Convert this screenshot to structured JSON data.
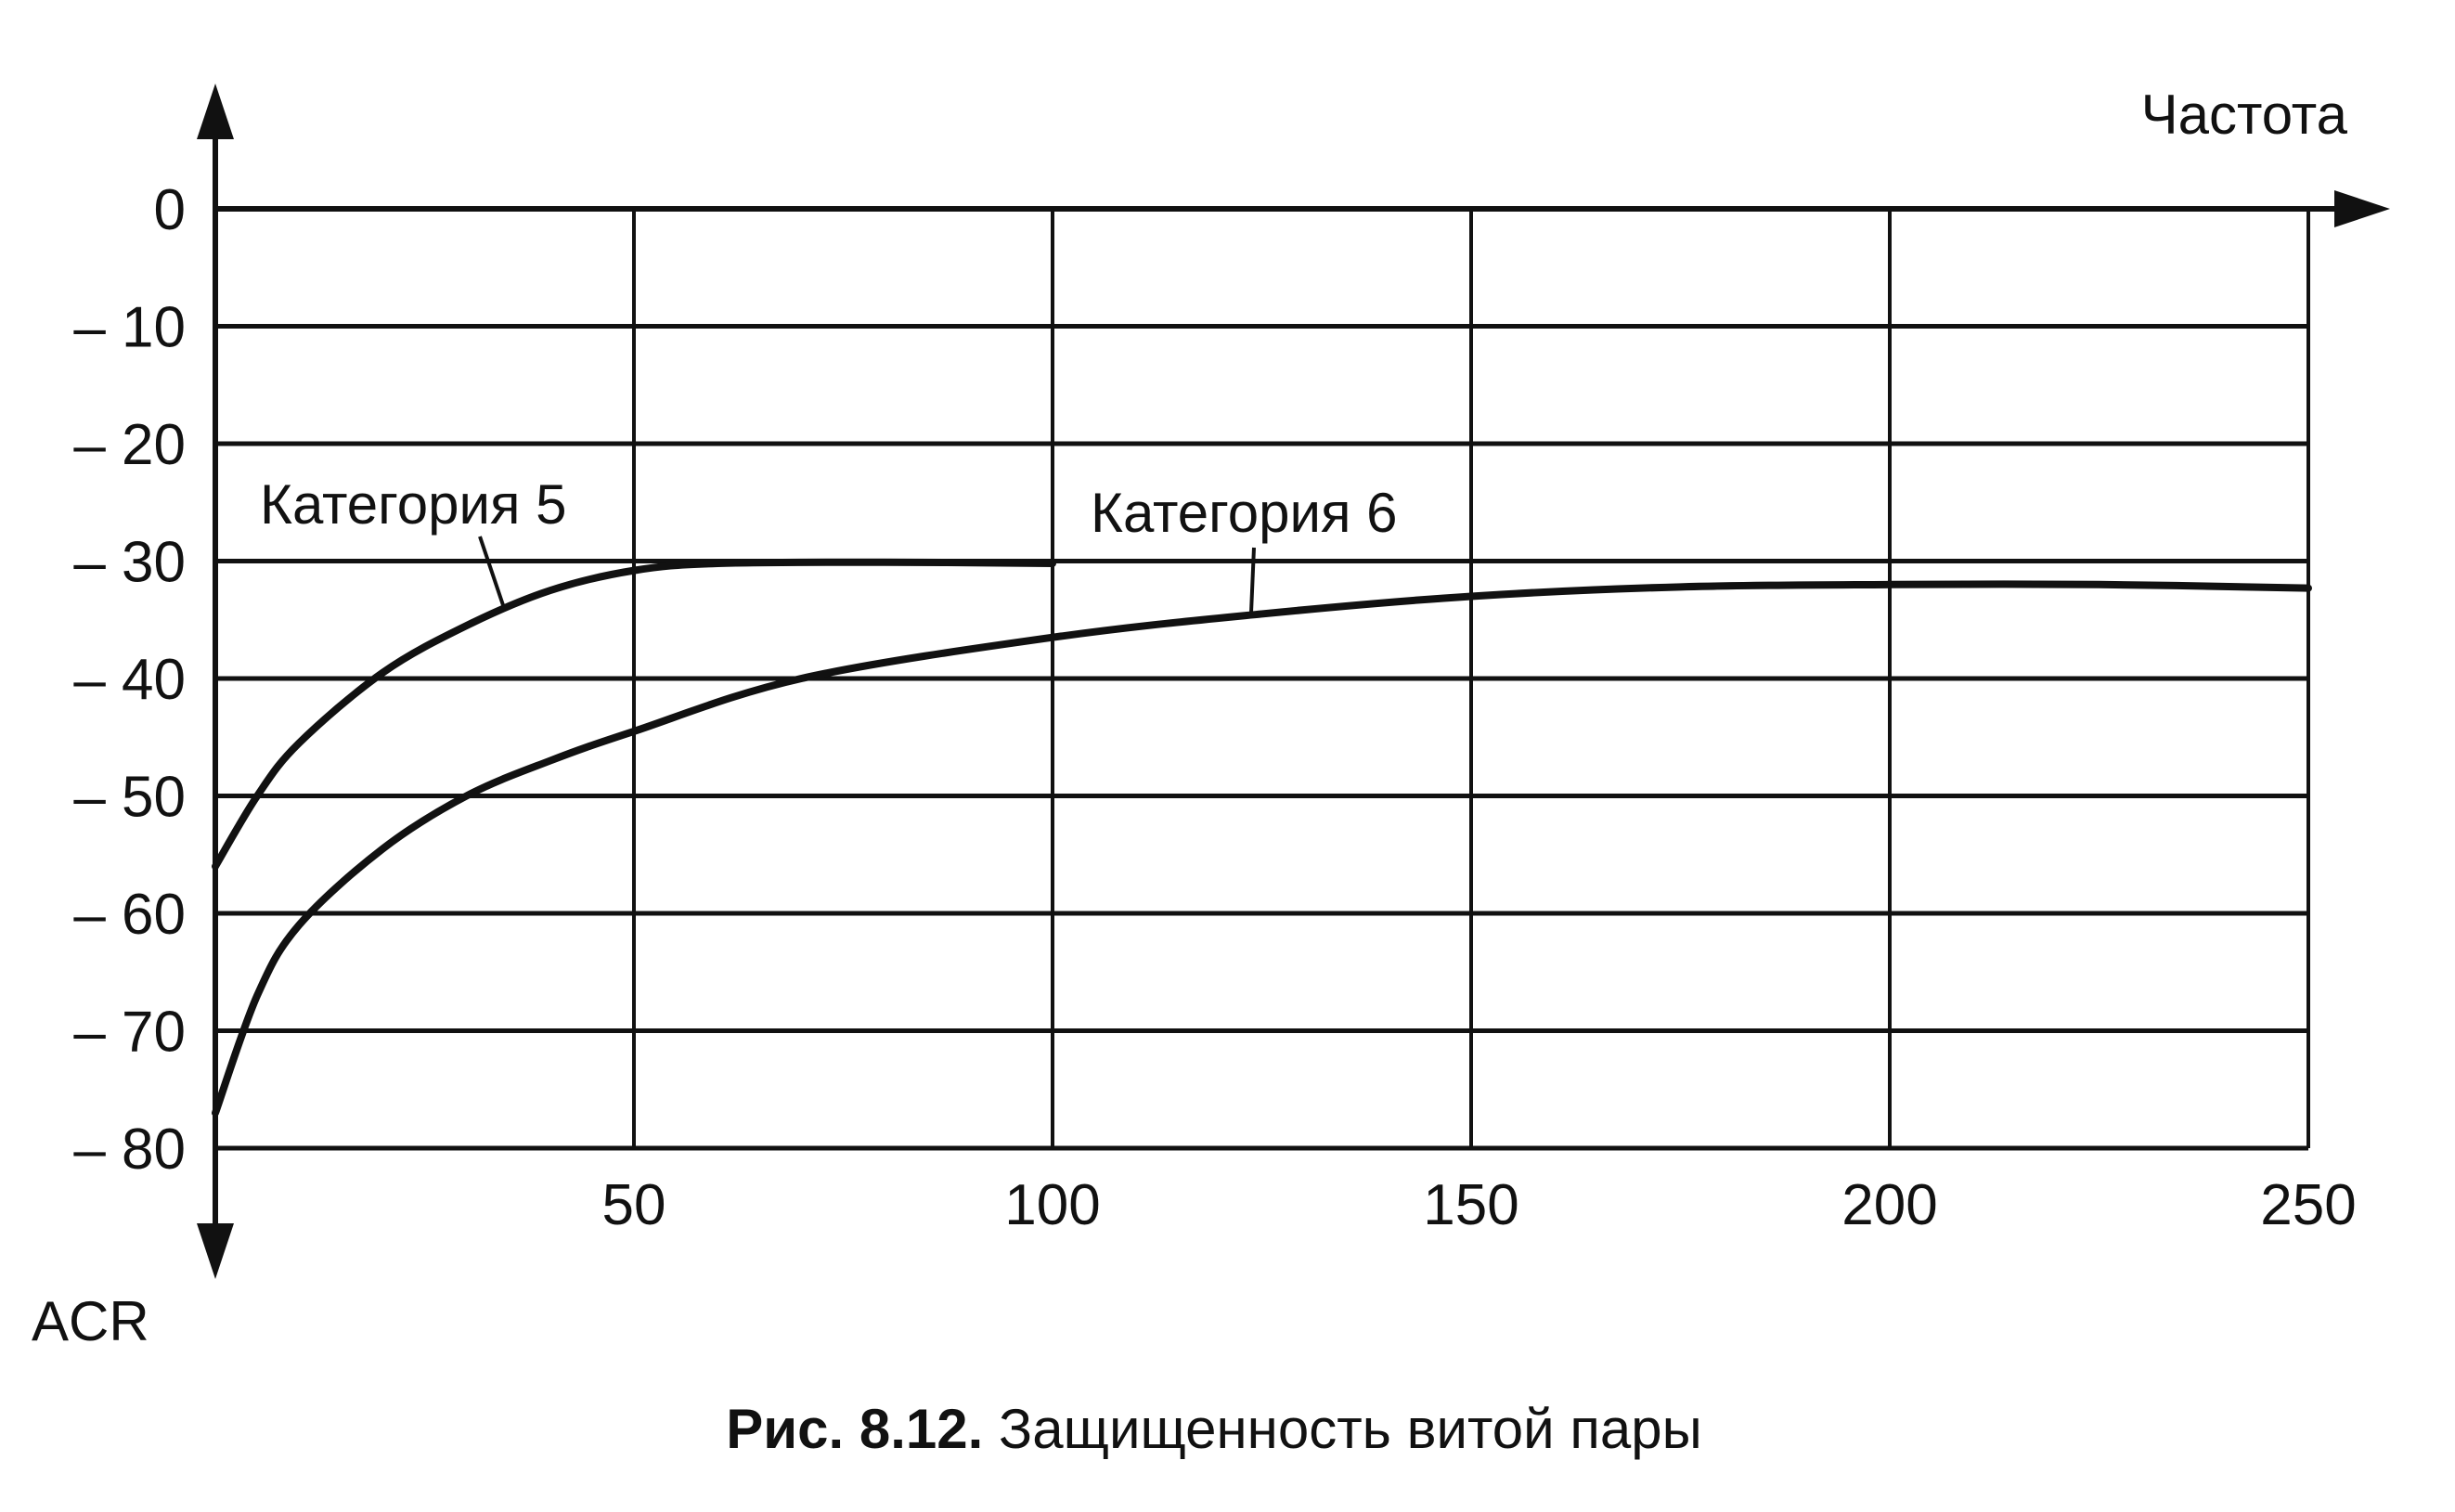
{
  "chart_data": {
    "type": "line",
    "title": "",
    "caption": {
      "number": "Рис. 8.12.",
      "text": "Защищенность витой пары"
    },
    "xlabel": "Частота",
    "ylabel": "ACR",
    "xlim": [
      0,
      250
    ],
    "ylim": [
      -80,
      0
    ],
    "x_ticks": [
      50,
      100,
      150,
      200,
      250
    ],
    "x_tick_labels": [
      "50",
      "100",
      "150",
      "200",
      "250"
    ],
    "y_ticks": [
      0,
      -10,
      -20,
      -30,
      -40,
      -50,
      -60,
      -70,
      -80
    ],
    "y_tick_labels": [
      "0",
      "– 10",
      "– 20",
      "– 30",
      "– 40",
      "– 50",
      "– 60",
      "– 70",
      "– 80"
    ],
    "grid": true,
    "series": [
      {
        "name": "Категория 5",
        "x": [
          0,
          5,
          10,
          20,
          30,
          40,
          50,
          60,
          80,
          100
        ],
        "y": [
          -56,
          -50,
          -45.5,
          -39.5,
          -35.5,
          -32.5,
          -30.8,
          -30.2,
          -30.1,
          -30.2
        ]
      },
      {
        "name": "Категория 6",
        "x": [
          0,
          5,
          10,
          20,
          30,
          40,
          50,
          70,
          100,
          125,
          150,
          175,
          200,
          225,
          250
        ],
        "y": [
          -77,
          -67,
          -61,
          -54.5,
          -50,
          -47,
          -44.5,
          -40,
          -36.5,
          -34.5,
          -33,
          -32.2,
          -32,
          -32,
          -32.3
        ]
      }
    ],
    "colors": {
      "ink": "#111111",
      "background": "#ffffff"
    }
  }
}
